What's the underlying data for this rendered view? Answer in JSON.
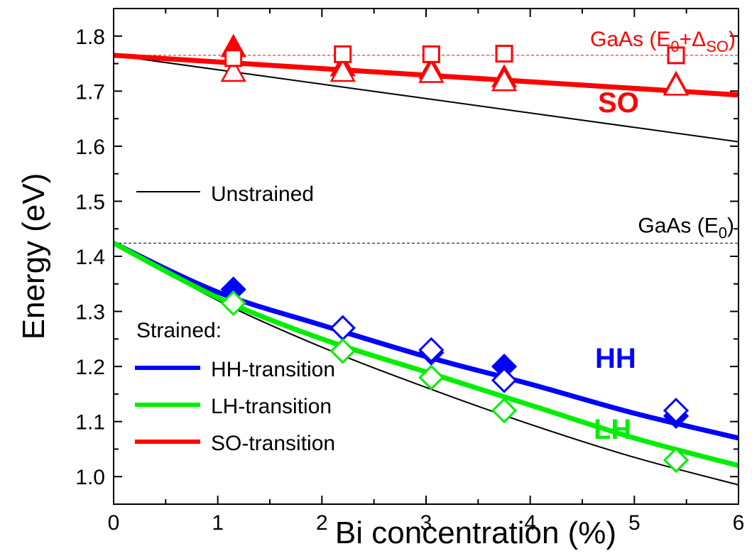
{
  "chart_data": {
    "type": "scatter",
    "xlabel": "Bi concentration (%)",
    "ylabel": "Energy (eV)",
    "xlim": [
      0,
      6
    ],
    "ylim": [
      0.95,
      1.85
    ],
    "x_ticks": [
      "0",
      "1",
      "2",
      "3",
      "4",
      "5",
      "6"
    ],
    "y_ticks": [
      "1.0",
      "1.1",
      "1.2",
      "1.3",
      "1.4",
      "1.5",
      "1.6",
      "1.7",
      "1.8"
    ],
    "colors": {
      "hh": "#0000ff",
      "lh": "#00ee00",
      "so": "#ff0000",
      "unstrained": "#000000"
    },
    "reference_lines": [
      {
        "label": "GaAs (E0)",
        "label_main": "GaAs (E",
        "label_sub": "0",
        "label_end": ")",
        "y": 1.424,
        "color": "#000000"
      },
      {
        "label": "GaAs (E0+ΔSO)",
        "label_main": "GaAs (E",
        "label_sub": "0",
        "label_mid": "+Δ",
        "label_sub2": "SO",
        "label_end": ")",
        "y": 1.765,
        "color": "#ff0000"
      }
    ],
    "curve_labels": {
      "so": "SO",
      "hh": "HH",
      "lh": "LH"
    },
    "legend": {
      "unstrained": "Unstrained",
      "strained_title": "Strained:",
      "hh": "HH-transition",
      "lh": "LH-transition",
      "so": "SO-transition"
    },
    "lines": [
      {
        "name": "Unstrained (E0)",
        "color": "#000000",
        "x": [
          0,
          1,
          2,
          3,
          4,
          5,
          6
        ],
        "y": [
          1.424,
          1.32,
          1.235,
          1.162,
          1.095,
          1.035,
          0.985
        ]
      },
      {
        "name": "Unstrained (SO)",
        "color": "#000000",
        "x": [
          0,
          6
        ],
        "y": [
          1.765,
          1.608
        ]
      },
      {
        "name": "HH-transition",
        "color": "#0000ff",
        "x": [
          0,
          1,
          2,
          3,
          4,
          5,
          6
        ],
        "y": [
          1.424,
          1.335,
          1.275,
          1.218,
          1.168,
          1.115,
          1.07
        ]
      },
      {
        "name": "LH-transition",
        "color": "#00ee00",
        "x": [
          0,
          1,
          2,
          3,
          4,
          5,
          6
        ],
        "y": [
          1.424,
          1.325,
          1.25,
          1.19,
          1.13,
          1.07,
          1.02
        ]
      },
      {
        "name": "SO-transition",
        "color": "#ff0000",
        "x": [
          0,
          6
        ],
        "y": [
          1.765,
          1.693
        ]
      }
    ],
    "series": [
      {
        "name": "HH filled",
        "marker": "diamond",
        "fill": true,
        "color": "#0000ff",
        "x": [
          1.15,
          2.2,
          3.05,
          3.75,
          5.4
        ],
        "y": [
          1.34,
          1.27,
          1.225,
          1.2,
          1.11
        ]
      },
      {
        "name": "HH open",
        "marker": "diamond",
        "fill": false,
        "color": "#0000ff",
        "x": [
          2.2,
          3.05,
          3.75,
          5.4
        ],
        "y": [
          1.27,
          1.23,
          1.175,
          1.12
        ]
      },
      {
        "name": "LH open",
        "marker": "diamond",
        "fill": false,
        "color": "#00ee00",
        "x": [
          1.15,
          2.2,
          3.05,
          3.75,
          5.4
        ],
        "y": [
          1.315,
          1.228,
          1.18,
          1.12,
          1.03
        ]
      },
      {
        "name": "SO filled",
        "marker": "triangle",
        "fill": true,
        "color": "#ff0000",
        "x": [
          1.15,
          2.2,
          3.05,
          3.75,
          5.4
        ],
        "y": [
          1.78,
          1.745,
          1.74,
          1.725,
          1.713
        ]
      },
      {
        "name": "SO open",
        "marker": "triangle",
        "fill": false,
        "color": "#ff0000",
        "x": [
          1.15,
          2.2,
          3.05,
          3.75,
          5.4
        ],
        "y": [
          1.735,
          1.735,
          1.733,
          1.718,
          1.71
        ]
      },
      {
        "name": "SO squares",
        "marker": "square",
        "fill": false,
        "color": "#ff0000",
        "x": [
          1.15,
          2.2,
          3.05,
          3.75,
          5.4
        ],
        "y": [
          1.76,
          1.767,
          1.767,
          1.768,
          1.765
        ]
      }
    ]
  }
}
